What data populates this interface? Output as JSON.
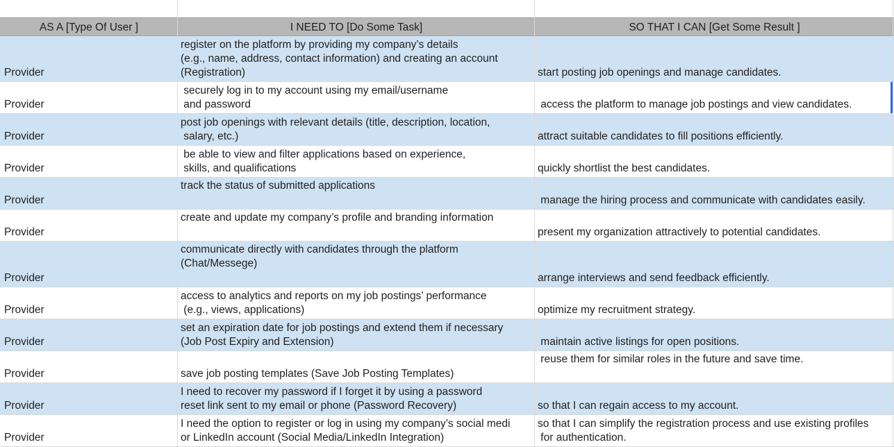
{
  "header": {
    "col_a": "AS A [Type Of User ]",
    "col_b": "I NEED TO [Do Some Task]",
    "col_c": "SO THAT I CAN [Get Some Result ]"
  },
  "rows": [
    {
      "user": "Provider",
      "task": "register on the platform by providing my company’s details\n(e.g., name, address, contact information) and creating an account\n(Registration)",
      "result": "start posting job openings and manage candidates."
    },
    {
      "user": "Provider",
      "task": " securely log in to my account using my email/username\n and password",
      "result": " access the platform to manage job postings and view candidates."
    },
    {
      "user": "Provider",
      "task": "post job openings with relevant details (title, description, location,\n salary, etc.)",
      "result": "attract suitable candidates to fill positions efficiently."
    },
    {
      "user": "Provider",
      "task": " be able to view and filter applications based on experience,\n skills, and qualifications",
      "result": "quickly shortlist the best candidates."
    },
    {
      "user": "Provider",
      "task": "track the status of submitted applications",
      "result": " manage the hiring process and communicate with candidates easily."
    },
    {
      "user": "Provider",
      "task": "create and update my company’s profile and branding information",
      "result": "present my organization attractively to potential candidates."
    },
    {
      "user": "Provider",
      "task": "communicate directly with candidates through the platform\n(Chat/Messege)",
      "result": "arrange interviews and send feedback efficiently."
    },
    {
      "user": "Provider",
      "task": "access to analytics and reports on my job postings’ performance\n (e.g., views, applications)",
      "result": "optimize my recruitment strategy."
    },
    {
      "user": "Provider",
      "task": "set an expiration date for job postings and extend them if necessary\n(Job Post Expiry and Extension)",
      "result": " maintain active listings for open positions."
    },
    {
      "user": "Provider",
      "task": "save job posting templates (Save Job Posting Templates)",
      "result": " reuse them for similar roles in the future and save time."
    },
    {
      "user": "Provider",
      "task": "I need to recover my password if I forget it by using a password\nreset link sent to my email or phone (Password Recovery)",
      "result": "so that I can regain access to my account."
    },
    {
      "user": "Provider",
      "task": "I need the option to register or log in using my company’s social medi\nor LinkedIn account (Social Media/LinkedIn Integration)",
      "result": "so that I can simplify the registration process and use existing profiles\n for authentication."
    }
  ]
}
